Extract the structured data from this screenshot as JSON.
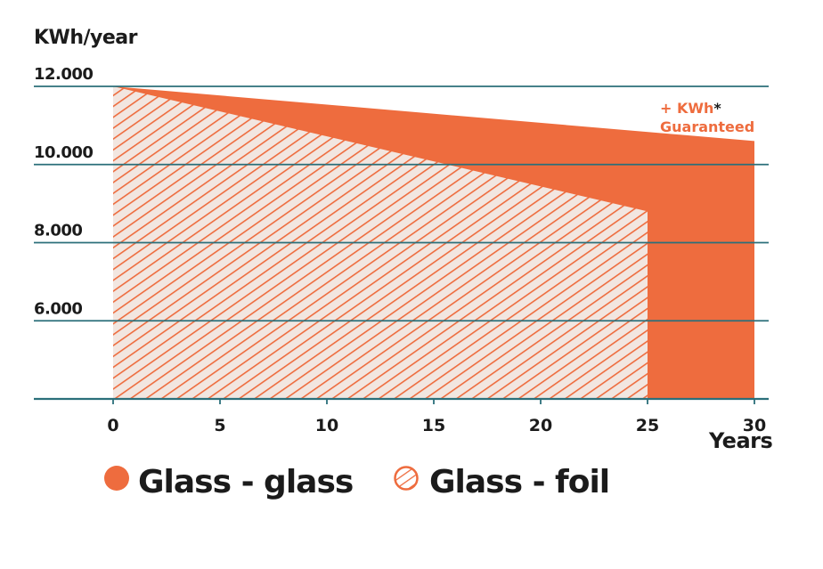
{
  "chart_data": {
    "type": "area",
    "ylabel": "KWh/year",
    "xlabel": "Years",
    "xlim": [
      0,
      30
    ],
    "ylim": [
      4000,
      12000
    ],
    "x_ticks": [
      "0",
      "5",
      "10",
      "15",
      "20",
      "25",
      "30"
    ],
    "y_ticks": [
      {
        "value": 12000,
        "label": "12.000"
      },
      {
        "value": 10000,
        "label": "10.000"
      },
      {
        "value": 8000,
        "label": "8.000"
      },
      {
        "value": 6000,
        "label": "6.000"
      }
    ],
    "series": [
      {
        "name": "Glass - glass",
        "style": "solid",
        "color": "#ee6c3e",
        "points": [
          {
            "x": 0,
            "y": 12000
          },
          {
            "x": 30,
            "y": 10600
          }
        ]
      },
      {
        "name": "Glass - foil",
        "style": "hatched",
        "color": "#ee6c3e",
        "points": [
          {
            "x": 0,
            "y": 12000
          },
          {
            "x": 25,
            "y": 8800
          }
        ]
      }
    ],
    "annotation": {
      "line1_prefix": "+ KWh",
      "line1_star": "*",
      "line2": "Guaranteed"
    },
    "grid": true,
    "legend_position": "bottom-left"
  },
  "colors": {
    "accent": "#ee6c3e",
    "grid": "#2b6f7a",
    "hatch_bg": "#f2e6e0"
  }
}
